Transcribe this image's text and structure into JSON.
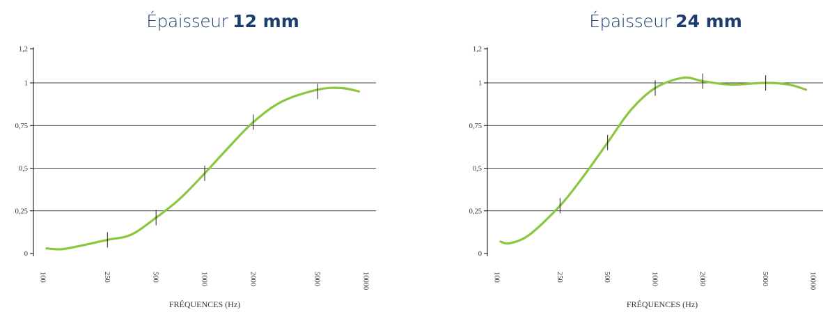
{
  "chart_data": [
    {
      "type": "line",
      "title_prefix": "Épaisseur",
      "title_value": "12 mm",
      "xlabel": "FRÉQUENCES (Hz)",
      "ylabel": "",
      "x_scale": "log",
      "xlim": [
        100,
        10000
      ],
      "ylim": [
        0,
        1.2
      ],
      "x_ticks": [
        "100",
        "250",
        "500",
        "1000",
        "2000",
        "5000",
        "10000"
      ],
      "y_ticks": [
        "0",
        "0,25",
        "0,5",
        "0,75",
        "1",
        "1,2"
      ],
      "grid": "horizontal",
      "line_color": "#8cc63f",
      "series": [
        {
          "values_measured": [
            {
              "x": 250,
              "y": 0.08
            },
            {
              "x": 500,
              "y": 0.21
            },
            {
              "x": 1000,
              "y": 0.47
            },
            {
              "x": 2000,
              "y": 0.77
            },
            {
              "x": 5000,
              "y": 0.95
            }
          ],
          "curve": [
            {
              "x": 105,
              "y": 0.03
            },
            {
              "x": 130,
              "y": 0.025
            },
            {
              "x": 170,
              "y": 0.045
            },
            {
              "x": 250,
              "y": 0.08
            },
            {
              "x": 350,
              "y": 0.11
            },
            {
              "x": 500,
              "y": 0.21
            },
            {
              "x": 700,
              "y": 0.32
            },
            {
              "x": 1000,
              "y": 0.47
            },
            {
              "x": 1400,
              "y": 0.62
            },
            {
              "x": 2000,
              "y": 0.77
            },
            {
              "x": 3000,
              "y": 0.89
            },
            {
              "x": 5000,
              "y": 0.96
            },
            {
              "x": 7000,
              "y": 0.97
            },
            {
              "x": 9000,
              "y": 0.95
            }
          ]
        }
      ]
    },
    {
      "type": "line",
      "title_prefix": "Épaisseur",
      "title_value": "24 mm",
      "xlabel": "FRÉQUENCES (Hz)",
      "ylabel": "",
      "x_scale": "log",
      "xlim": [
        100,
        10000
      ],
      "ylim": [
        0,
        1.2
      ],
      "x_ticks": [
        "100",
        "250",
        "500",
        "1000",
        "2000",
        "5000",
        "10000"
      ],
      "y_ticks": [
        "0",
        "0,25",
        "0,5",
        "0,75",
        "1",
        "1,2"
      ],
      "grid": "horizontal",
      "line_color": "#8cc63f",
      "series": [
        {
          "values_measured": [
            {
              "x": 250,
              "y": 0.28
            },
            {
              "x": 500,
              "y": 0.65
            },
            {
              "x": 1000,
              "y": 0.97
            },
            {
              "x": 2000,
              "y": 1.01
            },
            {
              "x": 5000,
              "y": 1.0
            }
          ],
          "curve": [
            {
              "x": 105,
              "y": 0.07
            },
            {
              "x": 120,
              "y": 0.06
            },
            {
              "x": 160,
              "y": 0.11
            },
            {
              "x": 250,
              "y": 0.28
            },
            {
              "x": 350,
              "y": 0.45
            },
            {
              "x": 500,
              "y": 0.65
            },
            {
              "x": 700,
              "y": 0.84
            },
            {
              "x": 1000,
              "y": 0.97
            },
            {
              "x": 1500,
              "y": 1.03
            },
            {
              "x": 2000,
              "y": 1.01
            },
            {
              "x": 3000,
              "y": 0.99
            },
            {
              "x": 5000,
              "y": 1.0
            },
            {
              "x": 7000,
              "y": 0.99
            },
            {
              "x": 9000,
              "y": 0.96
            }
          ]
        }
      ]
    }
  ]
}
